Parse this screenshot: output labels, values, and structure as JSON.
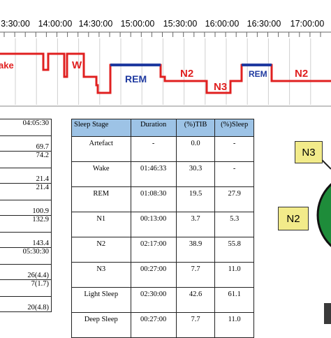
{
  "hypnogram": {
    "time_labels": [
      "3:30:00",
      "14:00:00",
      "14:30:00",
      "15:00:00",
      "15:30:00",
      "16:00:00",
      "16:30:00",
      "17:00:00"
    ],
    "stage_labels": [
      {
        "text": "ake",
        "color": "#e02020"
      },
      {
        "text": "W",
        "color": "#e02020"
      },
      {
        "text": "REM",
        "color": "#1f3aa0"
      },
      {
        "text": "N2",
        "color": "#e02020"
      },
      {
        "text": "N3",
        "color": "#e02020"
      },
      {
        "text": "REM",
        "color": "#1f3aa0"
      },
      {
        "text": "N2",
        "color": "#e02020"
      }
    ],
    "line_color": "#e02020",
    "rem_color": "#1f3aa0"
  },
  "left_table": {
    "rows": [
      {
        "value": "04:05:30"
      },
      {
        "value": "69.7"
      },
      {
        "value": "74.2"
      },
      {
        "value": "21.4"
      },
      {
        "value": "21.4"
      },
      {
        "value": "100.9"
      },
      {
        "value": "132.9"
      },
      {
        "value": "143.4"
      },
      {
        "value": "05:30:30"
      },
      {
        "value": "26(4.4)"
      },
      {
        "value": "7(1.7)"
      },
      {
        "value": "20(4.8)"
      }
    ]
  },
  "stage_table": {
    "header": {
      "stage": "Sleep Stage",
      "duration": "Duration",
      "tib": "(%)TIB",
      "sleep": "(%)Sleep"
    },
    "header_bg": "#9dc3e6",
    "rows": [
      {
        "stage": "Artefact",
        "duration": "-",
        "tib": "0.0",
        "sleep": "-"
      },
      {
        "stage": "Wake",
        "duration": "01:46:33",
        "tib": "30.3",
        "sleep": "-"
      },
      {
        "stage": "REM",
        "duration": "01:08:30",
        "tib": "19.5",
        "sleep": "27.9"
      },
      {
        "stage": "N1",
        "duration": "00:13:00",
        "tib": "3.7",
        "sleep": "5.3"
      },
      {
        "stage": "N2",
        "duration": "02:17:00",
        "tib": "38.9",
        "sleep": "55.8"
      },
      {
        "stage": "N3",
        "duration": "00:27:00",
        "tib": "7.7",
        "sleep": "11.0"
      },
      {
        "stage": "Light Sleep",
        "duration": "02:30:00",
        "tib": "42.6",
        "sleep": "61.1"
      },
      {
        "stage": "Deep Sleep",
        "duration": "00:27:00",
        "tib": "7.7",
        "sleep": "11.0"
      }
    ]
  },
  "diagram": {
    "n3_label": "N3",
    "n2_label": "N2",
    "circle_color": "#1e8c3a",
    "box_color": "#f2eb8a"
  }
}
